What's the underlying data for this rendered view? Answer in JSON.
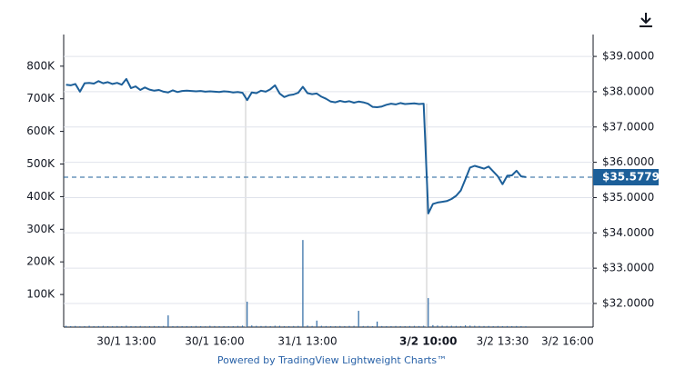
{
  "attribution": "Powered by TradingView Lightweight Charts™",
  "chart_data": {
    "type": "line",
    "categories": [
      null,
      null,
      null,
      null,
      null,
      null,
      null,
      null,
      null,
      null,
      null,
      null,
      null,
      "30/1 13:00",
      null,
      null,
      null,
      null,
      null,
      null,
      null,
      null,
      null,
      null,
      null,
      null,
      null,
      null,
      null,
      null,
      null,
      null,
      "30/1 16:00",
      null,
      null,
      null,
      null,
      null,
      null,
      null,
      null,
      null,
      null,
      null,
      null,
      null,
      null,
      null,
      null,
      null,
      null,
      null,
      "31/1 13:00",
      null,
      null,
      null,
      null,
      null,
      null,
      null,
      null,
      null,
      null,
      null,
      null,
      null,
      null,
      null,
      null,
      null,
      null,
      null,
      null,
      null,
      null,
      null,
      null,
      null,
      "3/2 10:00",
      null,
      null,
      null,
      null,
      null,
      null,
      null,
      null,
      null,
      null,
      null,
      null,
      null,
      null,
      null,
      "3/2 13:30",
      null,
      null,
      null,
      null,
      null,
      null,
      null,
      null,
      null,
      null,
      null,
      null,
      null,
      "3/2 16:00",
      null,
      null,
      null,
      null,
      null
    ],
    "series": [
      {
        "type": "bar",
        "color": "#2b67a3",
        "values": [
          4000,
          3000,
          3500,
          2500,
          3000,
          4000,
          2800,
          3200,
          3600,
          3000,
          2700,
          3300,
          3100,
          4200,
          3000,
          2900,
          3400,
          2600,
          3000,
          3200,
          2800,
          3500,
          36000,
          3000,
          3300,
          2900,
          3100,
          2700,
          3400,
          3000,
          2600,
          3800,
          3300,
          2900,
          3100,
          2700,
          3000,
          3600,
          4500,
          78000,
          5000,
          3800,
          3400,
          3600,
          3100,
          4200,
          3900,
          3000,
          2800,
          3300,
          3600,
          267000,
          4800,
          3500,
          20000,
          3900,
          3200,
          3000,
          2900,
          3400,
          3100,
          3600,
          3800,
          50000,
          3300,
          3500,
          3000,
          17000,
          3200,
          3000,
          2800,
          3400,
          3100,
          2900,
          3300,
          3600,
          3200,
          4000,
          89000,
          6000,
          4800,
          4200,
          3800,
          4000,
          3500,
          3200,
          5200,
          4500,
          4000,
          3600,
          3300,
          3500,
          3000,
          3400,
          2900,
          3200,
          3000,
          3300,
          2800,
          2500,
          null,
          null,
          null,
          null,
          null,
          null,
          null,
          null,
          null,
          null,
          null,
          null,
          null,
          null
        ]
      },
      {
        "type": "line",
        "axis": "y2",
        "color": "#1c5f99",
        "values": [
          38.2,
          38.18,
          38.22,
          38.0,
          38.24,
          38.25,
          38.23,
          38.3,
          38.24,
          38.27,
          38.22,
          38.25,
          38.2,
          38.36,
          38.1,
          38.15,
          38.05,
          38.12,
          38.06,
          38.03,
          38.05,
          38.0,
          37.98,
          38.04,
          37.99,
          38.02,
          38.03,
          38.02,
          38.01,
          38.02,
          38.0,
          38.01,
          38.0,
          37.99,
          38.01,
          38.0,
          37.98,
          37.99,
          37.97,
          37.76,
          37.98,
          37.96,
          38.03,
          38.0,
          38.07,
          38.18,
          37.95,
          37.85,
          37.9,
          37.92,
          37.97,
          38.14,
          37.96,
          37.93,
          37.95,
          37.86,
          37.8,
          37.72,
          37.7,
          37.74,
          37.71,
          37.73,
          37.69,
          37.72,
          37.7,
          37.66,
          37.57,
          37.56,
          37.58,
          37.63,
          37.66,
          37.64,
          37.68,
          37.65,
          37.66,
          37.67,
          37.65,
          37.66,
          34.55,
          34.82,
          34.86,
          34.88,
          34.9,
          34.96,
          35.05,
          35.2,
          35.52,
          35.85,
          35.9,
          35.86,
          35.82,
          35.88,
          35.74,
          35.6,
          35.38,
          35.62,
          35.63,
          35.76,
          35.6,
          35.58,
          null,
          null,
          null,
          null,
          null,
          null,
          null,
          null,
          null,
          null,
          null,
          null,
          null,
          null
        ]
      }
    ],
    "ylim": [
      0,
      897000
    ],
    "yticks": [
      {
        "value": 100000,
        "label": "100K"
      },
      {
        "value": 200000,
        "label": "200K"
      },
      {
        "value": 300000,
        "label": "300K"
      },
      {
        "value": 400000,
        "label": "400K"
      },
      {
        "value": 500000,
        "label": "500K"
      },
      {
        "value": 600000,
        "label": "600K"
      },
      {
        "value": 700000,
        "label": "700K"
      },
      {
        "value": 800000,
        "label": "800K"
      }
    ],
    "y2lim": [
      31.33,
      39.62
    ],
    "y2ticks": [
      {
        "value": 32,
        "label": "$32.0000"
      },
      {
        "value": 33,
        "label": "$33.0000"
      },
      {
        "value": 34,
        "label": "$34.0000"
      },
      {
        "value": 35,
        "label": "$35.0000"
      },
      {
        "value": 36,
        "label": "$36.0000"
      },
      {
        "value": 37,
        "label": "$37.0000"
      },
      {
        "value": 38,
        "label": "$38.0000"
      },
      {
        "value": 39,
        "label": "$39.0000"
      }
    ],
    "grid": true,
    "last_price": {
      "value": 35.5779,
      "label": "$35.5779"
    },
    "last_price_color": "#1c5f99"
  }
}
